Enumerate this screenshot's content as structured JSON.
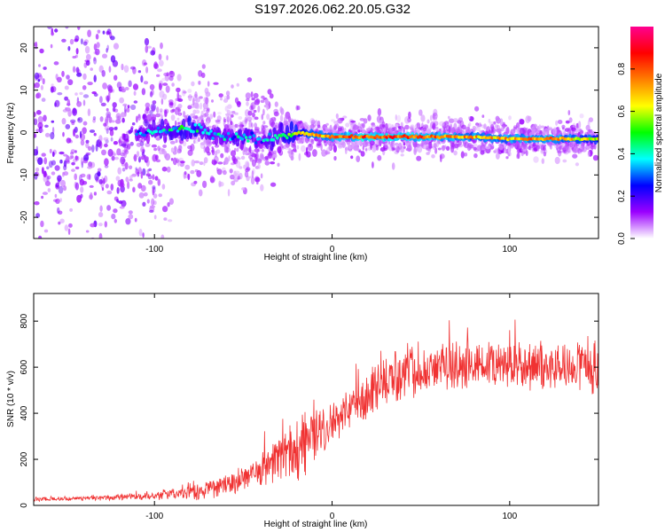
{
  "title": "S197.2026.062.20.05.G32",
  "chart_data": [
    {
      "type": "heatmap",
      "xlabel": "Height of straight line (km)",
      "ylabel": "Frequency (Hz)",
      "xlim": [
        -168,
        150
      ],
      "ylim": [
        -25,
        25
      ],
      "x_ticks": [
        "-100",
        "0",
        "100"
      ],
      "x_tick_values": [
        -100,
        0,
        100
      ],
      "y_ticks": [
        "-20",
        "-10",
        "0",
        "10",
        "20"
      ],
      "y_tick_values": [
        -20,
        -10,
        0,
        10,
        20
      ],
      "colorbar": {
        "label": "Normalized spectral amplitude",
        "range": [
          0,
          1
        ],
        "ticks": [
          "0.0",
          "0.2",
          "0.4",
          "0.6",
          "0.8"
        ],
        "tick_values": [
          0.0,
          0.2,
          0.4,
          0.6,
          0.8
        ],
        "stops": [
          "#ffffff",
          "#9b00ff",
          "#0000ff",
          "#00ffff",
          "#00ff00",
          "#ffff00",
          "#ff7f00",
          "#ff0000",
          "#ff0090"
        ]
      },
      "ridge": {
        "x": [
          -110,
          -100,
          -90,
          -80,
          -70,
          -60,
          -50,
          -40,
          -30,
          -20,
          0,
          20,
          40,
          60,
          80,
          100,
          120,
          150
        ],
        "freq_hz": [
          0,
          0,
          0.5,
          1,
          0,
          -1,
          -1,
          -2,
          -1,
          0,
          -1,
          -1,
          -1,
          -1,
          -1,
          -1.5,
          -1.5,
          -1.5
        ],
        "amplitude": [
          0.3,
          0.35,
          0.4,
          0.45,
          0.4,
          0.35,
          0.35,
          0.3,
          0.4,
          0.6,
          0.75,
          0.8,
          0.8,
          0.75,
          0.7,
          0.7,
          0.75,
          0.6
        ]
      }
    },
    {
      "type": "line",
      "xlabel": "Height of straight line (km)",
      "ylabel": "SNR (10 * v/v)",
      "xlim": [
        -168,
        150
      ],
      "ylim": [
        0,
        920
      ],
      "x_ticks": [
        "-100",
        "0",
        "100"
      ],
      "x_tick_values": [
        -100,
        0,
        100
      ],
      "y_ticks": [
        "0",
        "200",
        "400",
        "600",
        "800"
      ],
      "y_tick_values": [
        0,
        200,
        400,
        600,
        800
      ],
      "color": "#f03232",
      "series": [
        {
          "name": "SNR",
          "x": [
            -168,
            -140,
            -120,
            -100,
            -80,
            -60,
            -50,
            -40,
            -30,
            -25,
            -20,
            -15,
            -10,
            0,
            10,
            20,
            30,
            40,
            60,
            80,
            100,
            120,
            140,
            150
          ],
          "values": [
            25,
            30,
            35,
            40,
            60,
            85,
            110,
            150,
            200,
            220,
            230,
            250,
            330,
            350,
            420,
            480,
            540,
            580,
            600,
            600,
            610,
            600,
            610,
            610
          ],
          "spread": [
            10,
            10,
            12,
            15,
            40,
            50,
            60,
            70,
            100,
            120,
            130,
            150,
            120,
            80,
            80,
            90,
            110,
            110,
            100,
            100,
            100,
            100,
            110,
            120
          ]
        }
      ]
    }
  ]
}
